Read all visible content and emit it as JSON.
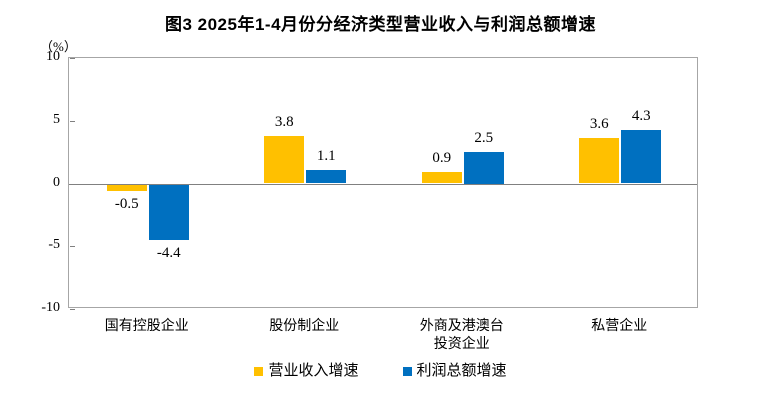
{
  "chart_data": {
    "type": "bar",
    "title": "图3 2025年1-4月份分经济类型营业收入与利润总额增速",
    "unit_label": "（%）",
    "categories": [
      "国有控股企业",
      "股份制企业",
      "外商及港澳台\n投资企业",
      "私营企业"
    ],
    "series": [
      {
        "name": "营业收入增速",
        "color": "#FFC000",
        "values": [
          -0.5,
          3.8,
          0.9,
          3.6
        ]
      },
      {
        "name": "利润总额增速",
        "color": "#0070C0",
        "values": [
          -4.4,
          1.1,
          2.5,
          4.3
        ]
      }
    ],
    "ylim": [
      -10,
      10
    ],
    "y_ticks": [
      10,
      5,
      0,
      -5,
      -10
    ],
    "grid": false,
    "legend_position": "bottom",
    "value_label_decimals": 1
  },
  "colors": {
    "axis_border": "#a6a6a6",
    "zero_line": "#808080",
    "text": "#000000",
    "background": "#ffffff",
    "series_revenue": "#FFC000",
    "series_profit": "#0070C0"
  }
}
